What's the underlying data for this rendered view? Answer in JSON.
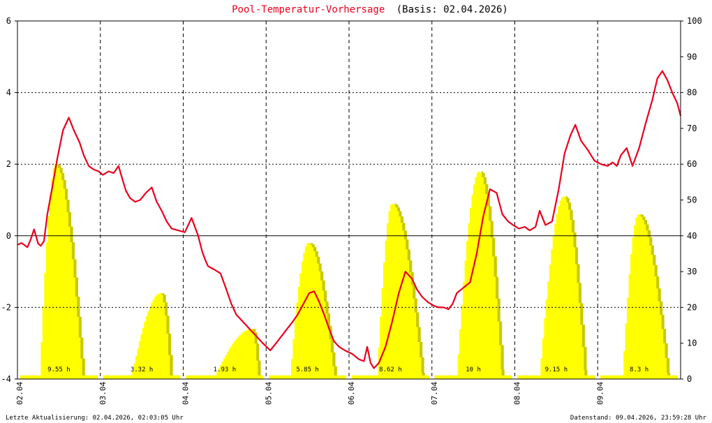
{
  "chart_data": {
    "type": "line",
    "title_main": "Pool-Temperatur-Vorhersage",
    "title_basis": "(Basis: 02.04.2026)",
    "y_left": {
      "min": -4,
      "max": 6,
      "ticks": [
        "-4",
        "-2",
        "0",
        "2",
        "4",
        "6"
      ]
    },
    "y_right": {
      "min": 0,
      "max": 100,
      "ticks": [
        "0",
        "10",
        "20",
        "30",
        "40",
        "50",
        "60",
        "70",
        "80",
        "90",
        "100"
      ]
    },
    "x_range_days": [
      0,
      8
    ],
    "days": [
      "02.04",
      "03.04",
      "04.04",
      "05.04",
      "06.04",
      "07.04",
      "08.04",
      "09.04"
    ],
    "grid": true,
    "colors": {
      "temperature": "#e8001c",
      "sun_dark": "#c8c800",
      "sun_light": "#ffff00",
      "title": "#e8001c",
      "axis": "#000000"
    },
    "sunshine": [
      {
        "label": "9.55 h",
        "rise": 0.26,
        "set": 0.78,
        "peak": 60,
        "peak_at": 0.45
      },
      {
        "label": "3.32 h",
        "rise": 1.36,
        "set": 1.84,
        "peak": 24,
        "peak_at": 1.72
      },
      {
        "label": "1.93 h",
        "rise": 2.36,
        "set": 2.9,
        "peak": 14,
        "peak_at": 2.82
      },
      {
        "label": "5.85 h",
        "rise": 3.28,
        "set": 3.82,
        "peak": 38,
        "peak_at": 3.5
      },
      {
        "label": "8.62 h",
        "rise": 4.33,
        "set": 4.88,
        "peak": 49,
        "peak_at": 4.51
      },
      {
        "label": "10 h",
        "rise": 5.29,
        "set": 5.84,
        "peak": 58,
        "peak_at": 5.56
      },
      {
        "label": "9.15 h",
        "rise": 6.29,
        "set": 6.84,
        "peak": 51,
        "peak_at": 6.58
      },
      {
        "label": "8.3 h",
        "rise": 7.29,
        "set": 7.84,
        "peak": 46,
        "peak_at": 7.48
      }
    ],
    "temperature": {
      "x": [
        0.0,
        0.05,
        0.08,
        0.12,
        0.16,
        0.2,
        0.25,
        0.28,
        0.32,
        0.36,
        0.42,
        0.48,
        0.55,
        0.62,
        0.68,
        0.75,
        0.8,
        0.86,
        0.92,
        0.98,
        1.03,
        1.1,
        1.16,
        1.22,
        1.27,
        1.31,
        1.36,
        1.42,
        1.48,
        1.55,
        1.62,
        1.68,
        1.74,
        1.8,
        1.86,
        1.94,
        2.02,
        2.1,
        2.18,
        2.23,
        2.27,
        2.3,
        2.34,
        2.38,
        2.45,
        2.52,
        2.58,
        2.64,
        2.72,
        2.8,
        2.88,
        2.96,
        3.05,
        3.12,
        3.17,
        3.22,
        3.27,
        3.32,
        3.38,
        3.45,
        3.52,
        3.58,
        3.64,
        3.7,
        3.76,
        3.82,
        3.88,
        3.95,
        4.04,
        4.12,
        4.18,
        4.22,
        4.26,
        4.3,
        4.36,
        4.44,
        4.52,
        4.6,
        4.68,
        4.76,
        4.82,
        4.88,
        4.95,
        5.02,
        5.08,
        5.14,
        5.2,
        5.25,
        5.3,
        5.38,
        5.46,
        5.54,
        5.62,
        5.7,
        5.78,
        5.85,
        5.92,
        5.98,
        6.05,
        6.12,
        6.18,
        6.25,
        6.3,
        6.37,
        6.45,
        6.53,
        6.6,
        6.67,
        6.73,
        6.8,
        6.88,
        6.96,
        7.04,
        7.12,
        7.18,
        7.23,
        7.28,
        7.35,
        7.42,
        7.5,
        7.58,
        7.66,
        7.72,
        7.78,
        7.84,
        7.9,
        7.96,
        8.0
      ],
      "y": [
        -0.25,
        -0.2,
        -0.25,
        -0.32,
        -0.1,
        0.18,
        -0.22,
        -0.28,
        -0.15,
        0.6,
        1.35,
        2.15,
        2.95,
        3.3,
        2.95,
        2.6,
        2.25,
        1.95,
        1.85,
        1.8,
        1.7,
        1.8,
        1.75,
        1.95,
        1.55,
        1.25,
        1.05,
        0.95,
        1.0,
        1.2,
        1.35,
        0.95,
        0.7,
        0.4,
        0.2,
        0.15,
        0.1,
        0.5,
        0.0,
        -0.45,
        -0.7,
        -0.85,
        -0.9,
        -0.95,
        -1.05,
        -1.5,
        -1.9,
        -2.2,
        -2.4,
        -2.6,
        -2.8,
        -3.0,
        -3.2,
        -3.0,
        -2.85,
        -2.7,
        -2.55,
        -2.4,
        -2.2,
        -1.9,
        -1.6,
        -1.55,
        -1.85,
        -2.2,
        -2.6,
        -2.95,
        -3.1,
        -3.2,
        -3.3,
        -3.45,
        -3.5,
        -3.1,
        -3.55,
        -3.7,
        -3.55,
        -3.1,
        -2.4,
        -1.6,
        -1.0,
        -1.2,
        -1.5,
        -1.7,
        -1.85,
        -1.95,
        -2.0,
        -2.0,
        -2.05,
        -1.9,
        -1.6,
        -1.45,
        -1.3,
        -0.5,
        0.55,
        1.3,
        1.2,
        0.6,
        0.4,
        0.3,
        0.2,
        0.25,
        0.15,
        0.25,
        0.7,
        0.3,
        0.4,
        1.3,
        2.3,
        2.8,
        3.1,
        2.65,
        2.4,
        2.1,
        2.0,
        1.95,
        2.05,
        1.95,
        2.25,
        2.45,
        1.95,
        2.45,
        3.15,
        3.8,
        4.4,
        4.6,
        4.35,
        4.0,
        3.7,
        3.35
      ]
    }
  },
  "footer": {
    "left": "Letzte Aktualisierung: 02.04.2026, 02:03:05 Uhr",
    "right": "Datenstand: 09.04.2026, 23:59:28 Uhr"
  }
}
